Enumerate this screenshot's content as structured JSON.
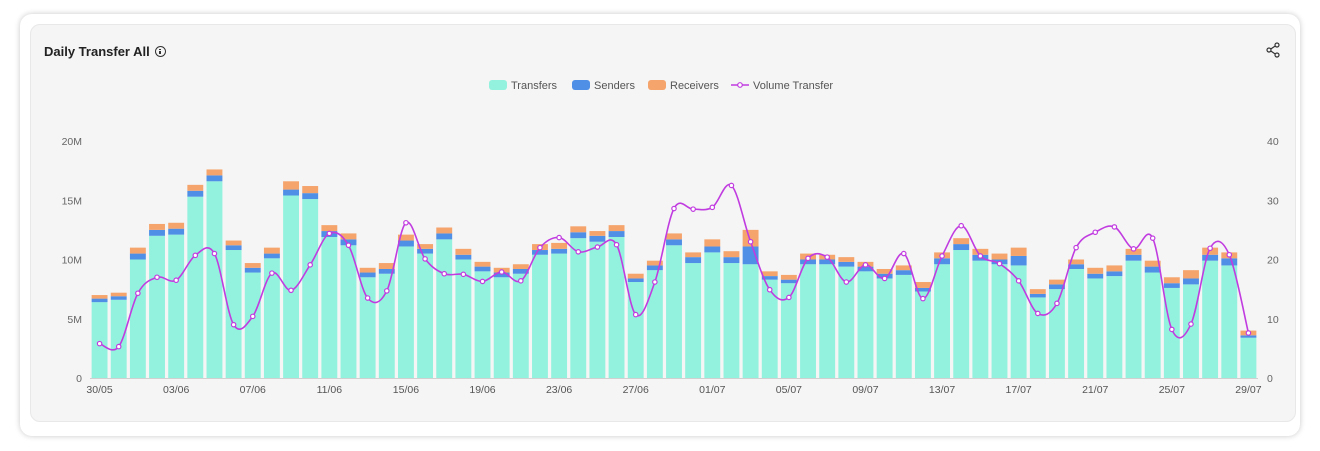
{
  "header": {
    "title": "Daily Transfer All"
  },
  "icons": {
    "info": "info-icon",
    "share": "share-icon"
  },
  "colors": {
    "transfers": "#93f2de",
    "senders": "#4f8fe6",
    "receivers": "#f5a46c",
    "volume": "#c13ce0"
  },
  "chart_data": {
    "type": "bar",
    "stacked": true,
    "legend": "top-center",
    "grid": false,
    "categories": [
      "30/05",
      "31/05",
      "01/06",
      "02/06",
      "03/06",
      "04/06",
      "05/06",
      "06/06",
      "07/06",
      "08/06",
      "09/06",
      "10/06",
      "11/06",
      "12/06",
      "13/06",
      "14/06",
      "15/06",
      "16/06",
      "17/06",
      "18/06",
      "19/06",
      "20/06",
      "21/06",
      "22/06",
      "23/06",
      "24/06",
      "25/06",
      "26/06",
      "27/06",
      "28/06",
      "29/06",
      "30/06",
      "01/07",
      "02/07",
      "03/07",
      "04/07",
      "05/07",
      "06/07",
      "07/07",
      "08/07",
      "09/07",
      "10/07",
      "11/07",
      "12/07",
      "13/07",
      "14/07",
      "15/07",
      "16/07",
      "17/07",
      "18/07",
      "19/07",
      "20/07",
      "21/07",
      "22/07",
      "23/07",
      "24/07",
      "25/07",
      "26/07",
      "27/07",
      "28/07",
      "29/07"
    ],
    "tick_labels": [
      "30/05",
      "03/06",
      "07/06",
      "11/06",
      "15/06",
      "19/06",
      "23/06",
      "27/06",
      "01/07",
      "05/07",
      "09/07",
      "13/07",
      "17/07",
      "21/07",
      "25/07",
      "29/07"
    ],
    "y_left": {
      "ticks": [
        "0",
        "5M",
        "10M",
        "15M",
        "20M"
      ],
      "range": [
        0,
        20000000
      ]
    },
    "y_right": {
      "ticks": [
        "0",
        "10",
        "20",
        "30",
        "40"
      ],
      "range": [
        0,
        40
      ]
    },
    "series": [
      {
        "name": "Transfers",
        "type": "bar",
        "axis": "left",
        "values": [
          6.4,
          6.6,
          10.0,
          12.0,
          12.1,
          15.3,
          16.6,
          10.8,
          8.9,
          10.1,
          15.4,
          15.1,
          11.9,
          11.2,
          8.5,
          8.8,
          11.1,
          10.5,
          11.7,
          10.0,
          9.0,
          8.5,
          8.8,
          10.4,
          10.5,
          11.8,
          11.5,
          11.9,
          8.1,
          9.1,
          11.2,
          9.7,
          10.6,
          9.7,
          9.6,
          8.3,
          8.0,
          9.6,
          9.6,
          9.4,
          9.0,
          8.4,
          8.7,
          7.3,
          9.6,
          10.8,
          9.9,
          9.6,
          9.5,
          6.8,
          7.5,
          9.2,
          8.4,
          8.6,
          9.9,
          8.9,
          7.6,
          7.9,
          9.9,
          9.5,
          3.4
        ]
      },
      {
        "name": "Senders",
        "type": "bar",
        "axis": "left",
        "values": [
          0.3,
          0.3,
          0.5,
          0.5,
          0.5,
          0.5,
          0.5,
          0.4,
          0.4,
          0.4,
          0.5,
          0.5,
          0.5,
          0.5,
          0.4,
          0.4,
          0.5,
          0.4,
          0.5,
          0.4,
          0.4,
          0.4,
          0.4,
          0.4,
          0.4,
          0.5,
          0.5,
          0.5,
          0.3,
          0.4,
          0.5,
          0.5,
          0.5,
          0.5,
          1.5,
          0.3,
          0.3,
          0.4,
          0.4,
          0.4,
          0.4,
          0.4,
          0.4,
          0.3,
          0.5,
          0.5,
          0.5,
          0.4,
          0.8,
          0.3,
          0.4,
          0.4,
          0.4,
          0.4,
          0.5,
          0.5,
          0.4,
          0.5,
          0.5,
          0.6,
          0.2
        ]
      },
      {
        "name": "Receivers",
        "type": "bar",
        "axis": "left",
        "values": [
          0.3,
          0.3,
          0.5,
          0.5,
          0.5,
          0.5,
          0.5,
          0.4,
          0.4,
          0.5,
          0.7,
          0.6,
          0.5,
          0.5,
          0.4,
          0.5,
          0.5,
          0.4,
          0.5,
          0.5,
          0.4,
          0.4,
          0.4,
          0.5,
          0.5,
          0.5,
          0.4,
          0.5,
          0.4,
          0.4,
          0.5,
          0.4,
          0.6,
          0.5,
          1.4,
          0.4,
          0.4,
          0.5,
          0.4,
          0.4,
          0.4,
          0.4,
          0.4,
          0.5,
          0.5,
          0.5,
          0.5,
          0.5,
          0.7,
          0.4,
          0.4,
          0.4,
          0.5,
          0.5,
          0.5,
          0.5,
          0.5,
          0.7,
          0.6,
          0.5,
          0.4
        ]
      },
      {
        "name": "Volume Transfer",
        "type": "line",
        "axis": "right",
        "values": [
          5.8,
          5.3,
          14.3,
          17.0,
          16.5,
          20.7,
          21.0,
          9.0,
          10.4,
          17.7,
          14.8,
          19.1,
          24.4,
          22.4,
          13.5,
          14.7,
          26.2,
          20.1,
          17.6,
          17.5,
          16.3,
          17.9,
          16.4,
          22.0,
          23.7,
          21.3,
          22.1,
          22.5,
          10.7,
          16.2,
          28.6,
          28.5,
          28.8,
          32.5,
          23.0,
          14.9,
          13.6,
          20.2,
          20.4,
          16.2,
          19.1,
          16.8,
          21.0,
          13.4,
          20.6,
          25.7,
          20.6,
          19.3,
          16.4,
          10.9,
          12.6,
          22.0,
          24.6,
          25.5,
          21.8,
          23.6,
          8.2,
          9.1,
          21.9,
          20.8,
          7.6
        ]
      }
    ]
  }
}
